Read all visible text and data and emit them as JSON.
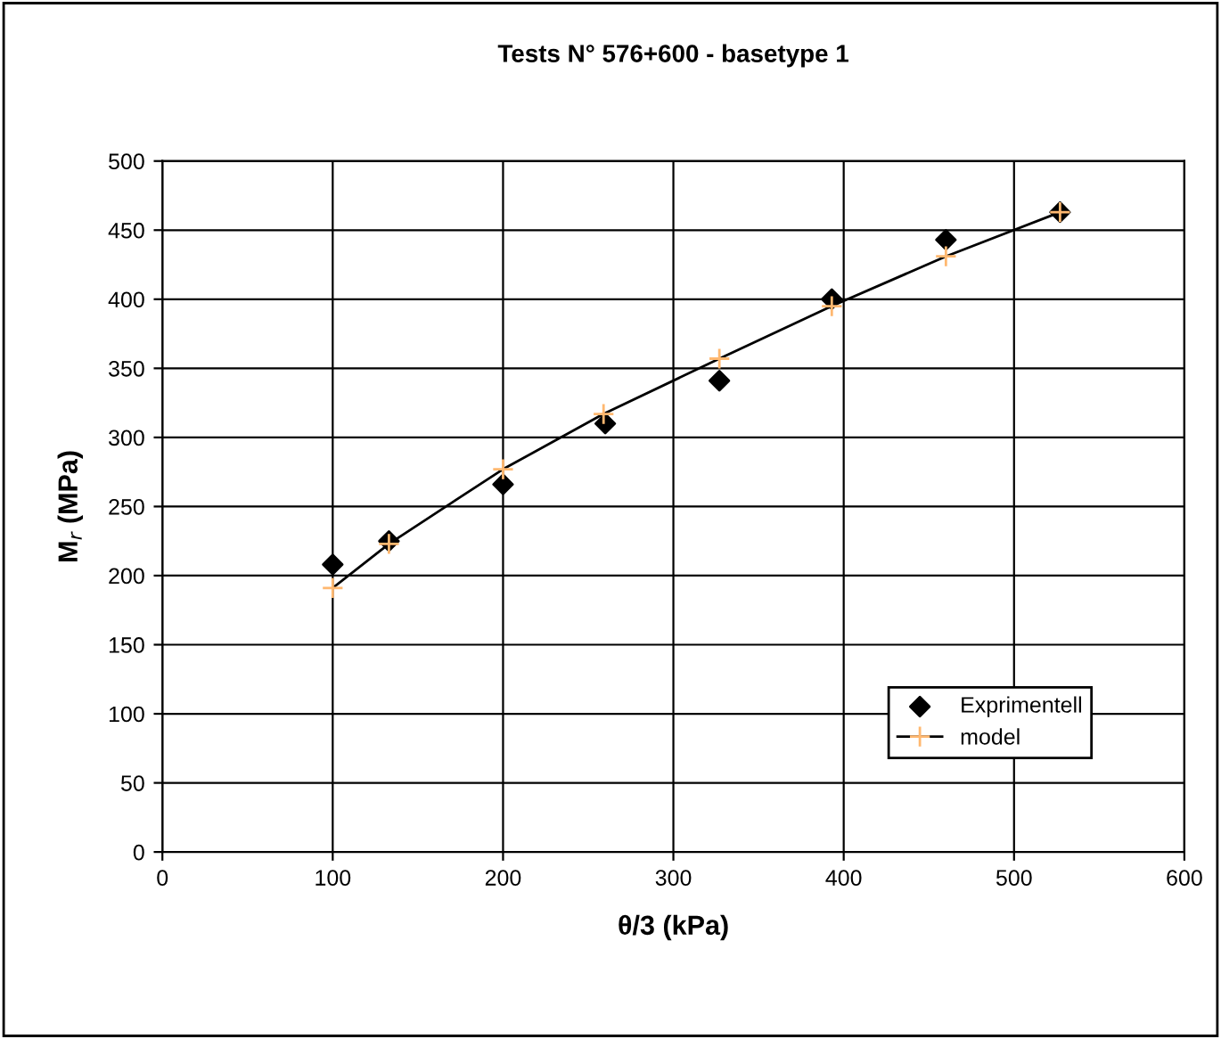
{
  "chart_data": {
    "type": "scatter",
    "title": "Tests N° 576+600 - basetype 1",
    "xlabel": "θ/3 (kPa)",
    "ylabel": "M$_{r}$ (MPa)",
    "xlim": [
      0,
      600
    ],
    "xticks": [
      0,
      100,
      200,
      300,
      400,
      500,
      600
    ],
    "ylim": [
      0,
      500
    ],
    "yticks": [
      0,
      50,
      100,
      150,
      200,
      250,
      300,
      350,
      400,
      450,
      500
    ],
    "grid": true,
    "legend": "bottom right",
    "series": [
      {
        "name": "Exprimentell",
        "marker": "diamond",
        "color": "#000000",
        "x": [
          100,
          133,
          200,
          260,
          327,
          393,
          460,
          527
        ],
        "values": [
          208,
          225,
          266,
          310,
          341,
          400,
          443,
          463
        ]
      },
      {
        "name": "model",
        "type": "line",
        "marker": "cross",
        "line_style": "solid",
        "color": "#ffb870",
        "x": [
          100,
          133,
          200,
          259,
          327,
          393,
          460,
          527
        ],
        "values": [
          191,
          223,
          277,
          317,
          357,
          395,
          431,
          463
        ]
      }
    ]
  }
}
